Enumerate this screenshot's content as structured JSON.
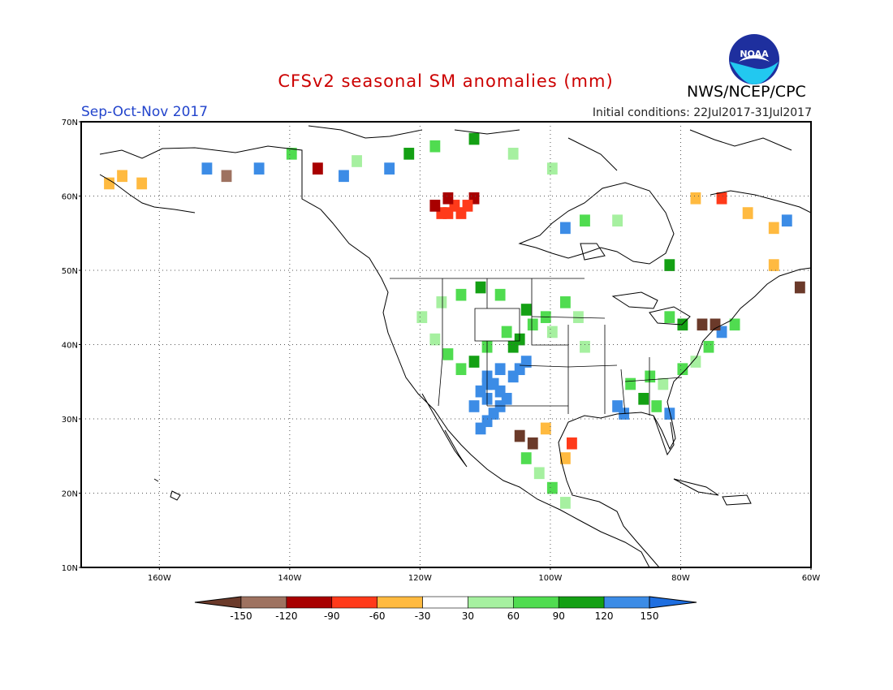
{
  "title": "CFSv2 seasonal SM anomalies (mm)",
  "season": "Sep-Oct-Nov 2017",
  "initial_conditions": "Initial conditions: 22Jul2017-31Jul2017",
  "agency": "NWS/NCEP/CPC",
  "logo_text": "NOAA",
  "map": {
    "lon_range": [
      -172,
      -60
    ],
    "lat_range": [
      10,
      70
    ],
    "lat_labels": [
      "70N",
      "60N",
      "50N",
      "40N",
      "30N",
      "20N",
      "10N"
    ],
    "lon_labels": [
      "160W",
      "140W",
      "120W",
      "100W",
      "80W",
      "60W"
    ],
    "grid": true
  },
  "legend": {
    "ticks": [
      "-150",
      "-120",
      "-90",
      "-60",
      "-30",
      "30",
      "60",
      "90",
      "120",
      "150"
    ],
    "colors": [
      "#6b3a2a",
      "#9e7260",
      "#a80000",
      "#ff3a1a",
      "#ffba40",
      "#ffffff",
      "#a6f0a0",
      "#50dc50",
      "#14a014",
      "#3c8ce6",
      "#1e6ee0"
    ]
  },
  "anomaly_cells": [
    {
      "lon": -117,
      "lat": 58,
      "c": 3
    },
    {
      "lon": -116,
      "lat": 58,
      "c": 3
    },
    {
      "lon": -115,
      "lat": 59,
      "c": 3
    },
    {
      "lon": -114,
      "lat": 58,
      "c": 3
    },
    {
      "lon": -118,
      "lat": 59,
      "c": 2
    },
    {
      "lon": -116,
      "lat": 60,
      "c": 2
    },
    {
      "lon": -112,
      "lat": 60,
      "c": 2
    },
    {
      "lon": -113,
      "lat": 59,
      "c": 3
    },
    {
      "lon": -110,
      "lat": 35,
      "c": 9
    },
    {
      "lon": -109,
      "lat": 35,
      "c": 9
    },
    {
      "lon": -108,
      "lat": 34,
      "c": 9
    },
    {
      "lon": -110,
      "lat": 33,
      "c": 9
    },
    {
      "lon": -111,
      "lat": 34,
      "c": 9
    },
    {
      "lon": -109,
      "lat": 31,
      "c": 9
    },
    {
      "lon": -110,
      "lat": 30,
      "c": 9
    },
    {
      "lon": -111,
      "lat": 29,
      "c": 9
    },
    {
      "lon": -108,
      "lat": 32,
      "c": 9
    },
    {
      "lon": -107,
      "lat": 33,
      "c": 9
    },
    {
      "lon": -106,
      "lat": 36,
      "c": 9
    },
    {
      "lon": -105,
      "lat": 37,
      "c": 9
    },
    {
      "lon": -104,
      "lat": 38,
      "c": 9
    },
    {
      "lon": -112,
      "lat": 32,
      "c": 9
    },
    {
      "lon": -110,
      "lat": 36,
      "c": 9
    },
    {
      "lon": -108,
      "lat": 37,
      "c": 9
    },
    {
      "lon": -106,
      "lat": 40,
      "c": 8
    },
    {
      "lon": -105,
      "lat": 41,
      "c": 8
    },
    {
      "lon": -107,
      "lat": 42,
      "c": 7
    },
    {
      "lon": -103,
      "lat": 43,
      "c": 7
    },
    {
      "lon": -101,
      "lat": 44,
      "c": 7
    },
    {
      "lon": -104,
      "lat": 45,
      "c": 8
    },
    {
      "lon": -98,
      "lat": 46,
      "c": 7
    },
    {
      "lon": -96,
      "lat": 44,
      "c": 6
    },
    {
      "lon": -100,
      "lat": 42,
      "c": 6
    },
    {
      "lon": -95,
      "lat": 40,
      "c": 6
    },
    {
      "lon": -110,
      "lat": 40,
      "c": 7
    },
    {
      "lon": -112,
      "lat": 38,
      "c": 8
    },
    {
      "lon": -114,
      "lat": 37,
      "c": 7
    },
    {
      "lon": -116,
      "lat": 39,
      "c": 7
    },
    {
      "lon": -118,
      "lat": 41,
      "c": 6
    },
    {
      "lon": -120,
      "lat": 44,
      "c": 6
    },
    {
      "lon": -117,
      "lat": 46,
      "c": 6
    },
    {
      "lon": -114,
      "lat": 47,
      "c": 7
    },
    {
      "lon": -111,
      "lat": 48,
      "c": 8
    },
    {
      "lon": -108,
      "lat": 47,
      "c": 7
    },
    {
      "lon": -90,
      "lat": 32,
      "c": 9
    },
    {
      "lon": -89,
      "lat": 31,
      "c": 9
    },
    {
      "lon": -86,
      "lat": 33,
      "c": 8
    },
    {
      "lon": -84,
      "lat": 32,
      "c": 7
    },
    {
      "lon": -82,
      "lat": 31,
      "c": 9
    },
    {
      "lon": -88,
      "lat": 35,
      "c": 7
    },
    {
      "lon": -85,
      "lat": 36,
      "c": 7
    },
    {
      "lon": -83,
      "lat": 35,
      "c": 6
    },
    {
      "lon": -80,
      "lat": 37,
      "c": 7
    },
    {
      "lon": -78,
      "lat": 38,
      "c": 6
    },
    {
      "lon": -76,
      "lat": 40,
      "c": 7
    },
    {
      "lon": -74,
      "lat": 42,
      "c": 9
    },
    {
      "lon": -72,
      "lat": 43,
      "c": 7
    },
    {
      "lon": -80,
      "lat": 43,
      "c": 8
    },
    {
      "lon": -82,
      "lat": 44,
      "c": 7
    },
    {
      "lon": -77,
      "lat": 43,
      "c": 0
    },
    {
      "lon": -75,
      "lat": 43,
      "c": 0
    },
    {
      "lon": -104,
      "lat": 25,
      "c": 7
    },
    {
      "lon": -102,
      "lat": 23,
      "c": 6
    },
    {
      "lon": -100,
      "lat": 21,
      "c": 7
    },
    {
      "lon": -98,
      "lat": 19,
      "c": 6
    },
    {
      "lon": -103,
      "lat": 27,
      "c": 0
    },
    {
      "lon": -105,
      "lat": 28,
      "c": 0
    },
    {
      "lon": -98,
      "lat": 25,
      "c": 4
    },
    {
      "lon": -97,
      "lat": 27,
      "c": 3
    },
    {
      "lon": -101,
      "lat": 29,
      "c": 4
    },
    {
      "lon": -168,
      "lat": 62,
      "c": 4
    },
    {
      "lon": -166,
      "lat": 63,
      "c": 4
    },
    {
      "lon": -163,
      "lat": 62,
      "c": 4
    },
    {
      "lon": -150,
      "lat": 63,
      "c": 1
    },
    {
      "lon": -153,
      "lat": 64,
      "c": 9
    },
    {
      "lon": -145,
      "lat": 64,
      "c": 9
    },
    {
      "lon": -140,
      "lat": 66,
      "c": 7
    },
    {
      "lon": -136,
      "lat": 64,
      "c": 2
    },
    {
      "lon": -132,
      "lat": 63,
      "c": 9
    },
    {
      "lon": -130,
      "lat": 65,
      "c": 6
    },
    {
      "lon": -125,
      "lat": 64,
      "c": 9
    },
    {
      "lon": -122,
      "lat": 66,
      "c": 8
    },
    {
      "lon": -118,
      "lat": 67,
      "c": 7
    },
    {
      "lon": -112,
      "lat": 68,
      "c": 8
    },
    {
      "lon": -106,
      "lat": 66,
      "c": 6
    },
    {
      "lon": -100,
      "lat": 64,
      "c": 6
    },
    {
      "lon": -98,
      "lat": 56,
      "c": 9
    },
    {
      "lon": -95,
      "lat": 57,
      "c": 7
    },
    {
      "lon": -90,
      "lat": 57,
      "c": 6
    },
    {
      "lon": -82,
      "lat": 51,
      "c": 8
    },
    {
      "lon": -78,
      "lat": 60,
      "c": 4
    },
    {
      "lon": -74,
      "lat": 60,
      "c": 3
    },
    {
      "lon": -70,
      "lat": 58,
      "c": 4
    },
    {
      "lon": -66,
      "lat": 56,
      "c": 4
    },
    {
      "lon": -64,
      "lat": 57,
      "c": 9
    },
    {
      "lon": -66,
      "lat": 51,
      "c": 4
    },
    {
      "lon": -62,
      "lat": 48,
      "c": 0
    }
  ]
}
